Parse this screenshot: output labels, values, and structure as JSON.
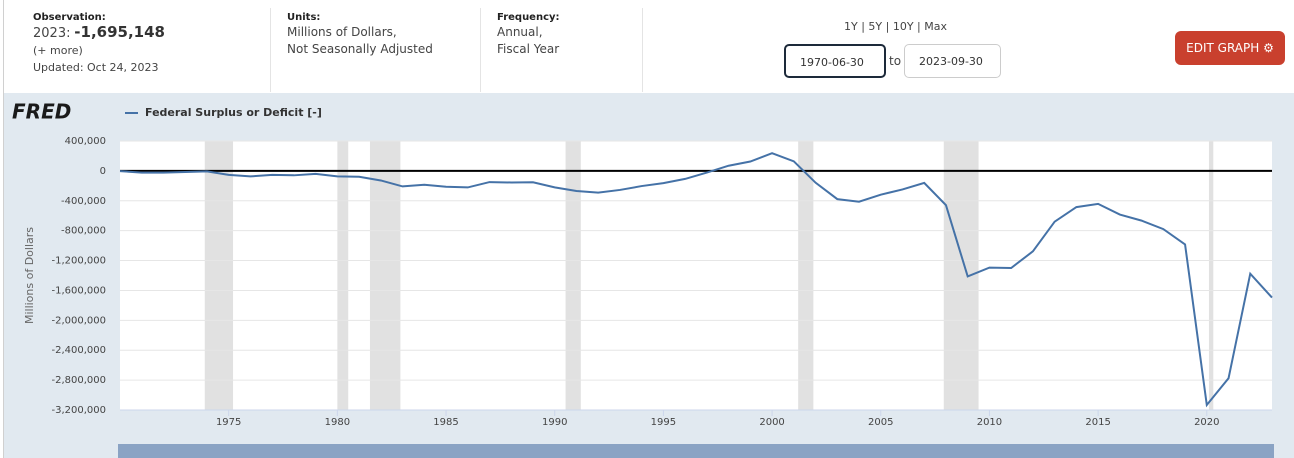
{
  "header": {
    "observation_label": "Observation:",
    "observation_year": "2023:",
    "observation_value": "-1,695,148",
    "more": "(+ more)",
    "updated": "Updated: Oct 24, 2023",
    "units_label": "Units:",
    "units_line1": "Millions of Dollars,",
    "units_line2": "Not Seasonally Adjusted",
    "frequency_label": "Frequency:",
    "frequency_line1": "Annual,",
    "frequency_line2": "Fiscal Year",
    "ranges": [
      "1Y",
      "5Y",
      "10Y",
      "Max"
    ],
    "start_date": "1970-06-30",
    "to": "to",
    "end_date": "2023-09-30",
    "edit_button": "EDIT GRAPH"
  },
  "chart_data": {
    "type": "line",
    "logo": "FRED",
    "ylabel": "Millions of Dollars",
    "x": [
      1970,
      1971,
      1972,
      1973,
      1974,
      1975,
      1976,
      1977,
      1978,
      1979,
      1980,
      1981,
      1982,
      1983,
      1984,
      1985,
      1986,
      1987,
      1988,
      1989,
      1990,
      1991,
      1992,
      1993,
      1994,
      1995,
      1996,
      1997,
      1998,
      1999,
      2000,
      2001,
      2002,
      2003,
      2004,
      2005,
      2006,
      2007,
      2008,
      2009,
      2010,
      2011,
      2012,
      2013,
      2014,
      2015,
      2016,
      2017,
      2018,
      2019,
      2020,
      2021,
      2022,
      2023
    ],
    "series": [
      {
        "name": "Federal Surplus or Deficit [-]",
        "color": "#4572a7",
        "values": [
          -2842,
          -23033,
          -23373,
          -14908,
          -6135,
          -53242,
          -73732,
          -53659,
          -59185,
          -40726,
          -73830,
          -78968,
          -127977,
          -207802,
          -185367,
          -212308,
          -221227,
          -149730,
          -155178,
          -152639,
          -221036,
          -269238,
          -290321,
          -255051,
          -203186,
          -163952,
          -107431,
          -21884,
          69270,
          125610,
          236241,
          128236,
          -157758,
          -377585,
          -412727,
          -318346,
          -248181,
          -160701,
          -458553,
          -1412688,
          -1294373,
          -1299599,
          -1076573,
          -679775,
          -484600,
          -441960,
          -584651,
          -665446,
          -779137,
          -983592,
          -3132460,
          -2775311,
          -1375913,
          -1695148
        ]
      }
    ],
    "recessions": [
      [
        1973.9,
        1975.2
      ],
      [
        1980.0,
        1980.5
      ],
      [
        1981.5,
        1982.9
      ],
      [
        1990.5,
        1991.2
      ],
      [
        2001.2,
        2001.9
      ],
      [
        2007.9,
        2009.5
      ],
      [
        2020.1,
        2020.3
      ]
    ],
    "recession_color": "#e1e1e1",
    "xlim": [
      1970,
      2023
    ],
    "xticks": [
      1975,
      1980,
      1985,
      1990,
      1995,
      2000,
      2005,
      2010,
      2015,
      2020
    ],
    "ylim": [
      -3200000,
      400000
    ],
    "yticks": [
      {
        "value": 400000,
        "label": "400,000"
      },
      0,
      {
        "value": -400000,
        "label": "-400,000"
      },
      {
        "value": -800000,
        "label": "-800,000"
      },
      {
        "value": -1200000,
        "label": "-1,200,000"
      },
      {
        "value": -1600000,
        "label": "-1,600,000"
      },
      {
        "value": -2000000,
        "label": "-2,000,000"
      },
      {
        "value": -2400000,
        "label": "-2,400,000"
      },
      {
        "value": -2800000,
        "label": "-2,800,000"
      },
      {
        "value": -3200000,
        "label": "-3,200,000"
      }
    ],
    "grid": true,
    "zero_line": true
  }
}
